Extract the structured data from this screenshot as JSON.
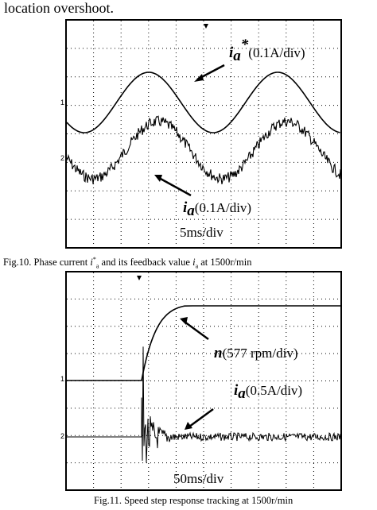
{
  "page": {
    "top_text": "location overshoot.",
    "fig10_caption": "Fig.10. Phase current i*a and its feedback value ia at 1500r/min",
    "fig11_caption": "Fig.11. Speed step response tracking at 1500r/min"
  },
  "fig10": {
    "ann1_sym": "i",
    "ann1_sub": "a",
    "ann1_sup": "*",
    "ann1_text": "(0.1A/div)",
    "ann2_sym": "i",
    "ann2_sub": "a",
    "ann2_text": "(0.1A/div)",
    "timebase": "5ms/div",
    "ch1": "1",
    "ch2": "2"
  },
  "fig11": {
    "ann1_sym": "n",
    "ann1_text": "(577 rpm/div)",
    "ann2_sym": "i",
    "ann2_sub": "a",
    "ann2_text": "(0.5A/div)",
    "timebase": "50ms/div",
    "ch1": "1",
    "ch2": "2"
  }
}
